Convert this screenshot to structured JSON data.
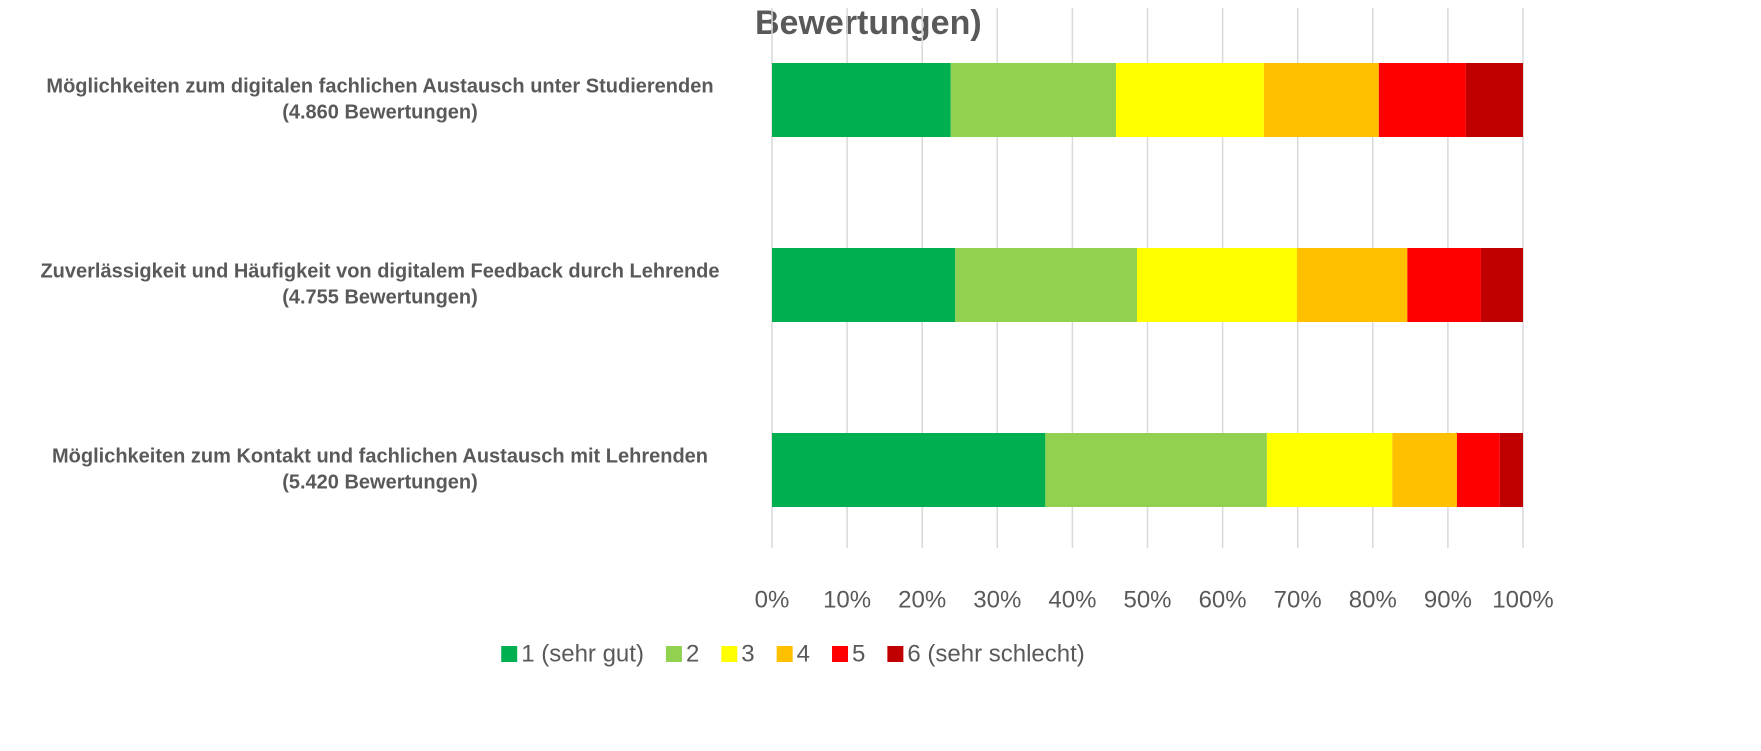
{
  "chart_data": {
    "type": "stacked_bar_horizontal",
    "title": "Bewertungen)",
    "categories": [
      [
        "Möglichkeiten zum digitalen fachlichen Austausch unter Studierenden",
        "(4.860 Bewertungen)"
      ],
      [
        "Zuverlässigkeit und Häufigkeit von digitalem Feedback durch Lehrende",
        "(4.755 Bewertungen)"
      ],
      [
        "Möglichkeiten zum Kontakt und fachlichen Austausch mit Lehrenden",
        "(5.420 Bewertungen)"
      ]
    ],
    "series": [
      {
        "name": "1 (sehr gut)",
        "color": "#00b050",
        "values": [
          23.8,
          24.4,
          36.4
        ]
      },
      {
        "name": "2",
        "color": "#92d050",
        "values": [
          22.0,
          24.2,
          29.5
        ]
      },
      {
        "name": "3",
        "color": "#ffff00",
        "values": [
          19.7,
          21.3,
          16.7
        ]
      },
      {
        "name": "4",
        "color": "#ffc000",
        "values": [
          15.3,
          14.7,
          8.6
        ]
      },
      {
        "name": "5",
        "color": "#ff0000",
        "values": [
          11.6,
          9.8,
          5.7
        ]
      },
      {
        "name": "6 (sehr schlecht)",
        "color": "#c00000",
        "values": [
          7.6,
          5.6,
          3.1
        ]
      }
    ],
    "xlim": [
      0,
      100
    ],
    "xticks": [
      {
        "value": 0,
        "label": "0%"
      },
      {
        "value": 10,
        "label": "10%"
      },
      {
        "value": 20,
        "label": "20%"
      },
      {
        "value": 30,
        "label": "30%"
      },
      {
        "value": 40,
        "label": "40%"
      },
      {
        "value": 50,
        "label": "50%"
      },
      {
        "value": 60,
        "label": "60%"
      },
      {
        "value": 70,
        "label": "70%"
      },
      {
        "value": 80,
        "label": "80%"
      },
      {
        "value": 90,
        "label": "90%"
      },
      {
        "value": 100,
        "label": "100%"
      }
    ],
    "grid": true,
    "legend": "bottom"
  }
}
